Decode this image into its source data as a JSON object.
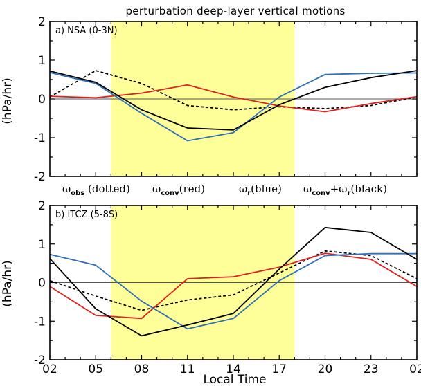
{
  "figure": {
    "title": "perturbation deep-layer vertical motions",
    "xlabel": "Local Time",
    "shade_color": "#ffff99",
    "legend": [
      {
        "symbol": "ω",
        "sub": "obs",
        "text": " (dotted)"
      },
      {
        "symbol": "ω",
        "sub": "conv",
        "text": "(red)"
      },
      {
        "symbol": "ω",
        "sub": "r",
        "text": "(blue)"
      },
      {
        "symbol": "ω",
        "sub": "conv",
        "plus": "+ω",
        "sub2": "r",
        "text": "(black)"
      }
    ]
  },
  "chart_data": [
    {
      "type": "line",
      "panel_label": "a) NSA (0-3N)",
      "ylabel": "(hPa/hr)",
      "x": [
        "02",
        "05",
        "08",
        "11",
        "14",
        "17",
        "20",
        "23",
        "02"
      ],
      "x_tick_labels": [
        "02",
        "05",
        "08",
        "11",
        "14",
        "17",
        "20",
        "23",
        "02"
      ],
      "ylim": [
        -2,
        2
      ],
      "y_ticks": [
        "2",
        "1",
        "0",
        "-1",
        "-2"
      ],
      "shaded_x_range": [
        "06:00",
        "18:00"
      ],
      "series": [
        {
          "color": "#000000",
          "dash": "dotted",
          "values": [
            0.05,
            0.73,
            0.4,
            -0.17,
            -0.28,
            -0.2,
            -0.25,
            -0.17,
            0.05
          ]
        },
        {
          "color": "#e01f1f",
          "dash": "solid",
          "values": [
            0.07,
            0.03,
            0.15,
            0.36,
            0.05,
            -0.18,
            -0.33,
            -0.12,
            0.06
          ]
        },
        {
          "color": "#2f6fb5",
          "dash": "solid",
          "values": [
            0.68,
            0.4,
            -0.37,
            -1.08,
            -0.87,
            0.05,
            0.63,
            0.66,
            0.67
          ]
        },
        {
          "color": "#000000",
          "dash": "solid",
          "values": [
            0.72,
            0.43,
            -0.28,
            -0.75,
            -0.8,
            -0.15,
            0.3,
            0.55,
            0.73
          ]
        }
      ]
    },
    {
      "type": "line",
      "panel_label": "b) ITCZ (5-8S)",
      "ylabel": "(hPa/hr)",
      "x": [
        "02",
        "05",
        "08",
        "11",
        "14",
        "17",
        "20",
        "23",
        "02"
      ],
      "x_tick_labels": [
        "02",
        "05",
        "08",
        "11",
        "14",
        "17",
        "20",
        "23",
        "02"
      ],
      "ylim": [
        -2,
        2
      ],
      "y_ticks": [
        "2",
        "1",
        "0",
        "-1",
        "-2"
      ],
      "shaded_x_range": [
        "06:00",
        "18:00"
      ],
      "series": [
        {
          "color": "#000000",
          "dash": "dotted",
          "values": [
            0.05,
            -0.35,
            -0.72,
            -0.45,
            -0.32,
            0.25,
            0.82,
            0.7,
            0.1
          ]
        },
        {
          "color": "#e01f1f",
          "dash": "solid",
          "values": [
            -0.1,
            -0.85,
            -0.93,
            0.1,
            0.15,
            0.4,
            0.76,
            0.6,
            -0.1
          ]
        },
        {
          "color": "#2f6fb5",
          "dash": "solid",
          "values": [
            0.73,
            0.45,
            -0.48,
            -1.2,
            -0.93,
            0.05,
            0.7,
            0.75,
            0.75
          ]
        },
        {
          "color": "#000000",
          "dash": "solid",
          "values": [
            0.62,
            -0.68,
            -1.38,
            -1.1,
            -0.8,
            0.35,
            1.43,
            1.3,
            0.6
          ]
        }
      ]
    }
  ]
}
